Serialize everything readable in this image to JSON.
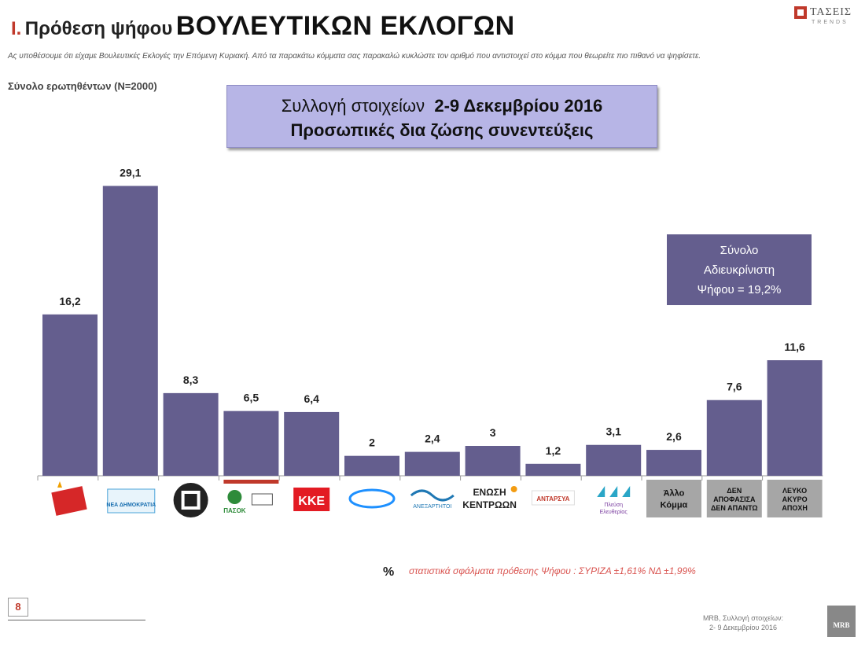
{
  "header": {
    "number": "I.",
    "title_prefix": "Πρόθεση ψήφου",
    "title_main": "ΒΟΥΛΕΥΤΙΚΩΝ ΕΚΛΟΓΩΝ",
    "question": "Ας υποθέσουμε ότι είχαμε Βουλευτικές Εκλογές την Επόμενη Κυριακή. Από τα παρακάτω κόμματα σας παρακαλώ κυκλώστε τον αριθμό που αντιστοιχεί στο κόμμα που θεωρείτε πιο πιθανό να ψηφίσετε.",
    "sample": "Σύνολο ερωτηθέντων (N=2000)"
  },
  "logo_top": {
    "brand": "ΤΑΣΕΙΣ",
    "sub": "TRENDS"
  },
  "infobox": {
    "line1_light": "Συλλογή στοιχείων",
    "line1_bold": "2-9 Δεκεμβρίου 2016",
    "line2": "Προσωπικές δια ζώσης συνεντεύξεις"
  },
  "note": {
    "line1": "Σύνολο",
    "line2": "Αδιευκρίνιστη",
    "line3": "Ψήφου = 19,2%"
  },
  "chart_data": {
    "type": "bar",
    "categories": [
      "ΣΥΡΙΖΑ",
      "ΝΕΑ ΔΗΜΟΚΡΑΤΙΑ",
      "ΧΡΥΣΗ ΑΥΓΗ",
      "ΠΑΣΟΚ ΔΗΜΑΡ",
      "ΚΚΕ",
      "ΤΟ ΠΟΤΑΜΙ",
      "ΑΝΕΞΑΡΤΗΤΟΙ ΕΛΛΗΝΕΣ",
      "ΕΝΩΣΗ ΚΕΝΤΡΩΩΝ",
      "ΑΝΤΑΡΣΥΑ",
      "ΠΛΕΥΣΗ ΕΛΕΥΘΕΡΙΑΣ",
      "Άλλο Κόμμα",
      "ΔΕΝ ΑΠΟΦΑΣΙΣΑ ΔΕΝ ΑΠΑΝΤΩ",
      "ΛΕΥΚΟ ΑΚΥΡΟ ΑΠΟΧΗ"
    ],
    "values": [
      16.2,
      29.1,
      8.3,
      6.5,
      6.4,
      2,
      2.4,
      3,
      1.2,
      3.1,
      2.6,
      7.6,
      11.6
    ],
    "labels": [
      "16,2",
      "29,1",
      "8,3",
      "6,5",
      "6,4",
      "2",
      "2,4",
      "3",
      "1,2",
      "3,1",
      "2,6",
      "7,6",
      "11,6"
    ],
    "ylim": [
      0,
      30
    ],
    "grid": false,
    "bar_color": "#645e8e",
    "text_categories": {
      "10": [
        "Άλλο",
        "Κόμμα"
      ],
      "11": [
        "ΔΕΝ",
        "ΑΠΟΦΑΣΙΣΑ",
        "ΔΕΝ ΑΠΑΝΤΩ"
      ],
      "12": [
        "ΛΕΥΚΟ",
        "ΑΚΥΡΟ",
        "ΑΠΟΧΗ"
      ]
    },
    "logo_text": {
      "1": "ΝΕΑ ΔΗΜΟΚΡΑΤΙΑ",
      "3": "ΠΑΣΟΚ",
      "4": "ΚΚΕ",
      "6": "ΑΝΕΞΑΡΤΗΤΟΙ",
      "7": [
        "ΕΝΩΣΗ",
        "ΚΕΝΤΡΩΩΝ"
      ],
      "8": "ΑΝΤΑΡΣΥΑ",
      "9": [
        "Πλεύση",
        "Ελευθερίας"
      ]
    }
  },
  "footer": {
    "pct": "%",
    "error_text": "στατιστικά σφάλματα πρόθεσης Ψήφου : ΣΥΡΙΖΑ ±1,61% ΝΔ ±1,99%",
    "page": "8",
    "source_line1": "MRB, Συλλογή στοιχείων:",
    "source_line2": "2- 9 Δεκεμβρίου 2016",
    "mrb_logo": "MRB"
  }
}
